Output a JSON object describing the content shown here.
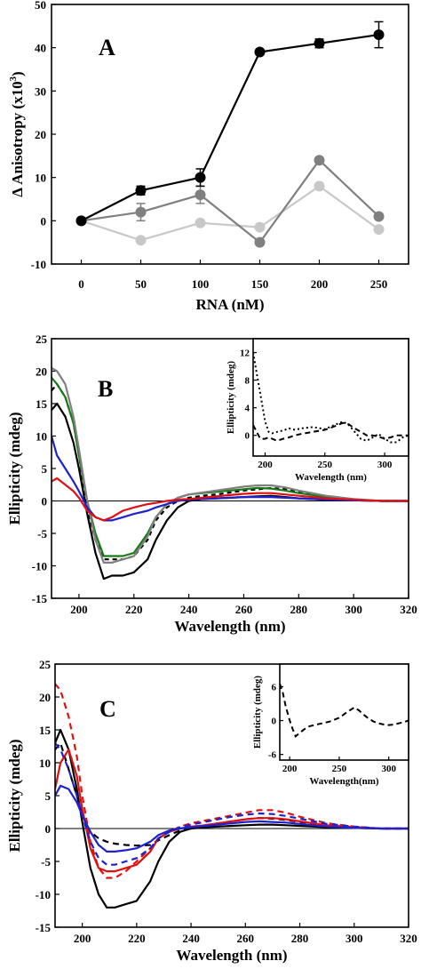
{
  "chart_data": [
    {
      "type": "line",
      "panel_label": "A",
      "xlabel": "RNA (nM)",
      "ylabel": "Δ Anisotropy (x10",
      "ylabel_sup": "3",
      "ylabel_close": ")",
      "xlim": [
        -25,
        275
      ],
      "ylim": [
        -10,
        50
      ],
      "xticks": [
        0,
        50,
        100,
        150,
        200,
        250
      ],
      "yticks": [
        -10,
        0,
        10,
        20,
        30,
        40,
        50
      ],
      "x": [
        0,
        50,
        100,
        150,
        200,
        250
      ],
      "series": [
        {
          "color": "#000000",
          "values": [
            0,
            7,
            10,
            39,
            41,
            43
          ],
          "errors": [
            0.5,
            1,
            2,
            0.5,
            1,
            3
          ]
        },
        {
          "color": "#808080",
          "values": [
            0,
            2,
            6,
            -5,
            14,
            1
          ],
          "errors": [
            0.5,
            2,
            2,
            0.5,
            0.5,
            0.5
          ]
        },
        {
          "color": "#c8c8c8",
          "values": [
            0,
            -4.5,
            -0.5,
            -1.5,
            8,
            -2
          ],
          "errors": [
            0,
            0,
            0,
            0,
            0,
            0
          ]
        }
      ]
    },
    {
      "type": "line",
      "panel_label": "B",
      "xlabel": "Wavelength (nm)",
      "ylabel": "Ellipticity (mdeg)",
      "xlim": [
        190,
        320
      ],
      "ylim": [
        -15,
        25
      ],
      "xticks": [
        200,
        220,
        240,
        260,
        280,
        300,
        320
      ],
      "yticks": [
        -15,
        -10,
        -5,
        0,
        5,
        10,
        15,
        20,
        25
      ],
      "series": [
        {
          "color": "#000000",
          "dash": "",
          "x": [
            190,
            192,
            195,
            198,
            200,
            203,
            206,
            209,
            212,
            216,
            220,
            225,
            228,
            232,
            236,
            240,
            245,
            250,
            255,
            260,
            265,
            270,
            275,
            280,
            290,
            300,
            310,
            320
          ],
          "values": [
            14,
            15,
            13,
            9,
            5,
            -2,
            -8,
            -12,
            -11.5,
            -11.5,
            -11,
            -9,
            -6,
            -3,
            -1,
            0,
            0.3,
            0.4,
            0.5,
            0.6,
            0.7,
            0.8,
            0.6,
            0.4,
            0.2,
            0.1,
            0,
            0
          ]
        },
        {
          "color": "#000000",
          "dash": "5,4",
          "x": [
            190,
            192,
            195,
            198,
            200,
            203,
            206,
            209,
            212,
            216,
            220,
            225,
            228,
            232,
            236,
            240,
            245,
            250,
            255,
            260,
            265,
            270,
            275,
            280,
            290,
            300,
            310,
            320
          ],
          "values": [
            17,
            18,
            16,
            12,
            7,
            -1,
            -6,
            -9,
            -9,
            -9,
            -8.5,
            -6,
            -3,
            -1,
            0,
            0.5,
            0.8,
            1,
            1.3,
            1.6,
            1.8,
            2,
            1.8,
            1.3,
            0.6,
            0.2,
            0,
            0
          ]
        },
        {
          "color": "#1a7a1a",
          "dash": "",
          "x": [
            190,
            192,
            195,
            198,
            200,
            203,
            206,
            209,
            212,
            216,
            220,
            225,
            228,
            232,
            236,
            240,
            245,
            250,
            255,
            260,
            265,
            270,
            275,
            280,
            290,
            300,
            310,
            320
          ],
          "values": [
            19,
            18,
            16,
            12,
            7,
            0,
            -5,
            -8.5,
            -8.5,
            -8.5,
            -8,
            -5,
            -2.5,
            -0.5,
            0.5,
            1,
            1.2,
            1.4,
            1.6,
            1.8,
            2,
            1.9,
            1.6,
            1.2,
            0.6,
            0.2,
            0,
            0
          ]
        },
        {
          "color": "#808080",
          "dash": "",
          "x": [
            190,
            192,
            195,
            198,
            200,
            203,
            206,
            209,
            212,
            216,
            220,
            225,
            228,
            232,
            236,
            240,
            245,
            250,
            255,
            260,
            265,
            270,
            275,
            280,
            290,
            300,
            310,
            320
          ],
          "values": [
            20.5,
            20,
            18,
            13,
            8,
            0,
            -6,
            -9.5,
            -9.5,
            -9,
            -8.5,
            -5.5,
            -2.5,
            -0.5,
            0.5,
            1,
            1.3,
            1.6,
            1.9,
            2.2,
            2.4,
            2.4,
            2.1,
            1.6,
            0.8,
            0.3,
            0,
            0
          ]
        },
        {
          "color": "#1e22cc",
          "dash": "",
          "x": [
            190,
            192,
            195,
            198,
            200,
            203,
            206,
            209,
            212,
            216,
            220,
            225,
            228,
            232,
            236,
            240,
            245,
            250,
            255,
            260,
            265,
            270,
            275,
            280,
            290,
            300,
            310,
            320
          ],
          "values": [
            10,
            7,
            5,
            3,
            1.5,
            -1,
            -2.5,
            -3,
            -3,
            -2.5,
            -2,
            -1.5,
            -1,
            -0.5,
            0,
            0.2,
            0.3,
            0.4,
            0.5,
            0.6,
            0.6,
            0.6,
            0.5,
            0.4,
            0.2,
            0.1,
            0,
            0
          ]
        },
        {
          "color": "#e01010",
          "dash": "",
          "x": [
            190,
            192,
            195,
            198,
            200,
            203,
            206,
            209,
            212,
            216,
            220,
            225,
            228,
            232,
            236,
            240,
            245,
            250,
            255,
            260,
            265,
            270,
            275,
            280,
            290,
            300,
            310,
            320
          ],
          "values": [
            3,
            3.5,
            2.5,
            1.5,
            0.5,
            -1.5,
            -2.5,
            -3,
            -2.5,
            -1.5,
            -1,
            -0.5,
            -0.3,
            0,
            0.2,
            0.3,
            0.5,
            0.7,
            0.9,
            1.1,
            1.2,
            1.2,
            1,
            0.8,
            0.4,
            0.2,
            0,
            0
          ]
        }
      ],
      "inset": {
        "xlabel": "Wavelength (nm)",
        "ylabel": "Ellipticity (mdeg)",
        "xlim": [
          190,
          320
        ],
        "ylim": [
          -3,
          14
        ],
        "xticks": [
          200,
          250,
          300
        ],
        "yticks": [
          0,
          4,
          8,
          12
        ],
        "series": [
          {
            "color": "#000000",
            "dash": "2,3",
            "x": [
              190,
              193,
              196,
              200,
              203,
              206,
              210,
              215,
              220,
              225,
              230,
              240,
              250,
              258,
              265,
              270,
              275,
              280,
              285,
              290,
              295,
              300,
              305,
              310,
              315,
              320
            ],
            "values": [
              12,
              9,
              6,
              2,
              0.5,
              0.3,
              0.5,
              0.7,
              1,
              0.8,
              1,
              1.2,
              0.9,
              1.5,
              2,
              1.5,
              0.5,
              -0.5,
              -0.8,
              -0.3,
              0.2,
              -0.5,
              -1,
              -1,
              -0.3,
              0
            ]
          },
          {
            "color": "#000000",
            "dash": "6,4",
            "x": [
              190,
              193,
              196,
              200,
              203,
              206,
              210,
              215,
              220,
              225,
              230,
              240,
              250,
              258,
              265,
              270,
              275,
              280,
              285,
              290,
              295,
              300,
              305,
              310,
              315,
              320
            ],
            "values": [
              1.5,
              0.5,
              -0.5,
              -0.5,
              -0.3,
              -0.5,
              -0.8,
              -0.5,
              -0.3,
              0,
              0.2,
              0.5,
              0.8,
              1.3,
              1.8,
              1.6,
              1,
              0.5,
              0,
              0,
              -0.2,
              -0.5,
              -0.3,
              0,
              0,
              0
            ]
          }
        ]
      }
    },
    {
      "type": "line",
      "panel_label": "C",
      "xlabel": "Wavelength (nm)",
      "ylabel": "Ellipticity (mdeg)",
      "xlim": [
        190,
        320
      ],
      "ylim": [
        -15,
        25
      ],
      "xticks": [
        200,
        220,
        240,
        260,
        280,
        300,
        320
      ],
      "yticks": [
        -15,
        -10,
        -5,
        0,
        5,
        10,
        15,
        20,
        25
      ],
      "series": [
        {
          "color": "#000000",
          "dash": "",
          "x": [
            190,
            192,
            195,
            198,
            200,
            203,
            206,
            209,
            212,
            216,
            220,
            225,
            228,
            232,
            236,
            240,
            245,
            250,
            255,
            260,
            265,
            270,
            275,
            280,
            290,
            300,
            310,
            320
          ],
          "values": [
            13,
            15,
            12,
            6,
            1,
            -6,
            -10,
            -12,
            -12,
            -11.5,
            -11,
            -8,
            -5,
            -2,
            -0.5,
            0,
            0.2,
            0.3,
            0.4,
            0.5,
            0.6,
            0.6,
            0.5,
            0.4,
            0.2,
            0.1,
            0,
            0
          ]
        },
        {
          "color": "#000000",
          "dash": "7,5",
          "x": [
            190,
            192,
            195,
            198,
            200,
            203,
            206,
            209,
            212,
            216,
            220,
            225,
            228,
            232,
            236,
            240,
            245,
            250,
            255,
            260,
            265,
            270,
            275,
            280,
            290,
            300,
            310,
            320
          ],
          "values": [
            12,
            13,
            9,
            5,
            2,
            -0.5,
            -1.5,
            -2,
            -2.3,
            -2.5,
            -2.6,
            -2.5,
            -1.8,
            -1,
            -0.3,
            0.2,
            0.5,
            0.8,
            1.1,
            1.4,
            1.6,
            1.5,
            1.3,
            1,
            0.5,
            0.2,
            0,
            0
          ]
        },
        {
          "color": "#e01010",
          "dash": "",
          "x": [
            190,
            192,
            195,
            198,
            200,
            203,
            206,
            209,
            212,
            216,
            220,
            225,
            228,
            232,
            236,
            240,
            245,
            250,
            255,
            260,
            265,
            270,
            275,
            280,
            290,
            300,
            310,
            320
          ],
          "values": [
            6,
            10,
            12,
            8,
            3,
            -3,
            -6,
            -6.5,
            -6.5,
            -6,
            -5.5,
            -3.5,
            -1.5,
            -0.5,
            0,
            0.3,
            0.5,
            0.8,
            1.1,
            1.4,
            1.6,
            1.6,
            1.4,
            1.1,
            0.5,
            0.2,
            0,
            0
          ]
        },
        {
          "color": "#e01010",
          "dash": "7,5",
          "x": [
            190,
            192,
            195,
            198,
            200,
            203,
            206,
            209,
            212,
            216,
            220,
            225,
            228,
            232,
            236,
            240,
            245,
            250,
            255,
            260,
            265,
            270,
            275,
            280,
            290,
            300,
            310,
            320
          ],
          "values": [
            22,
            21,
            17,
            11,
            5,
            -2,
            -6,
            -7.5,
            -7.5,
            -6.5,
            -5,
            -3,
            -1.5,
            -0.5,
            0.3,
            0.8,
            1.2,
            1.6,
            2,
            2.4,
            2.8,
            2.8,
            2.4,
            1.8,
            0.8,
            0.3,
            0,
            0
          ]
        },
        {
          "color": "#1e22cc",
          "dash": "",
          "x": [
            190,
            192,
            195,
            198,
            200,
            203,
            206,
            209,
            212,
            216,
            220,
            225,
            228,
            232,
            236,
            240,
            245,
            250,
            255,
            260,
            265,
            270,
            275,
            280,
            290,
            300,
            310,
            320
          ],
          "values": [
            5,
            6.5,
            6,
            4,
            2,
            -0.5,
            -2.5,
            -3.5,
            -3.5,
            -3.3,
            -3,
            -2,
            -1,
            -0.3,
            0,
            0.2,
            0.4,
            0.6,
            0.8,
            1,
            1.1,
            1,
            0.9,
            0.7,
            0.3,
            0.1,
            0,
            0
          ]
        },
        {
          "color": "#1e22cc",
          "dash": "7,5",
          "x": [
            190,
            192,
            195,
            198,
            200,
            203,
            206,
            209,
            212,
            216,
            220,
            225,
            228,
            232,
            236,
            240,
            245,
            250,
            255,
            260,
            265,
            270,
            275,
            280,
            290,
            300,
            310,
            320
          ],
          "values": [
            13,
            12,
            9,
            5,
            2,
            -2,
            -4.5,
            -5.5,
            -5.5,
            -5,
            -4.5,
            -3,
            -1.5,
            -0.5,
            0.2,
            0.6,
            1,
            1.4,
            1.8,
            2.1,
            2.3,
            2.2,
            1.9,
            1.5,
            0.7,
            0.3,
            0,
            0
          ]
        }
      ],
      "inset": {
        "xlabel": "Wavelength(nm)",
        "ylabel": "Ellipticity (mdeg)",
        "xlim": [
          190,
          320
        ],
        "ylim": [
          -7,
          10
        ],
        "xticks": [
          200,
          250,
          300
        ],
        "yticks": [
          -6,
          0,
          6
        ],
        "series": [
          {
            "color": "#000000",
            "dash": "6,4",
            "x": [
              190,
              193,
              196,
              200,
              203,
              206,
              210,
              215,
              220,
              225,
              230,
              240,
              250,
              258,
              265,
              270,
              275,
              280,
              285,
              290,
              295,
              300,
              305,
              310,
              315,
              320
            ],
            "values": [
              6.5,
              5,
              2.5,
              0,
              -1.5,
              -2.8,
              -2.2,
              -1.5,
              -1,
              -0.8,
              -0.6,
              -0.2,
              0.5,
              1.5,
              2.3,
              1.8,
              1,
              0.3,
              -0.2,
              -0.5,
              -0.7,
              -0.8,
              -0.7,
              -0.5,
              -0.3,
              0
            ]
          }
        ]
      }
    }
  ]
}
